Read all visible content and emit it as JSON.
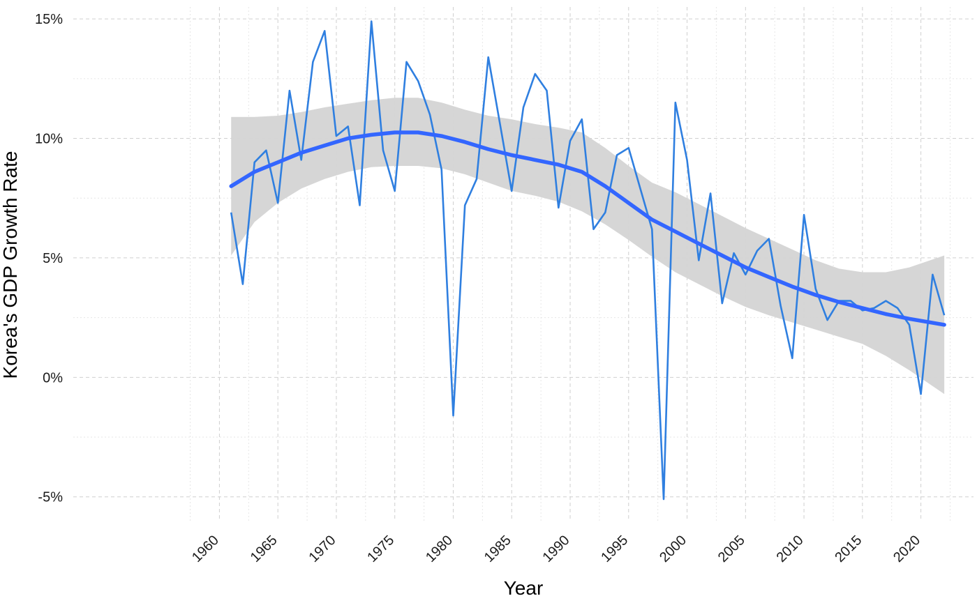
{
  "chart_data": {
    "type": "line",
    "title": "",
    "xlabel": "Year",
    "ylabel": "Korea's GDP Growth Rate",
    "xlim": [
      1947.5,
      2024.5
    ],
    "ylim": [
      -6,
      15.5
    ],
    "x_ticks": [
      1960,
      1965,
      1970,
      1975,
      1980,
      1985,
      1990,
      1995,
      2000,
      2005,
      2010,
      2015,
      2020
    ],
    "x_tick_labels": [
      "1960",
      "1965",
      "1970",
      "1975",
      "1980",
      "1985",
      "1990",
      "1995",
      "2000",
      "2005",
      "2010",
      "2015",
      "2020"
    ],
    "y_ticks": [
      -5,
      0,
      5,
      10,
      15
    ],
    "y_tick_labels": [
      "-5%",
      "0%",
      "5%",
      "10%",
      "15%"
    ],
    "grid": true,
    "legend": "none",
    "series": [
      {
        "kind": "line",
        "color": "#2f7fe0",
        "x": [
          1961,
          1962,
          1963,
          1964,
          1965,
          1966,
          1967,
          1968,
          1969,
          1970,
          1971,
          1972,
          1973,
          1974,
          1975,
          1976,
          1977,
          1978,
          1979,
          1980,
          1981,
          1982,
          1983,
          1984,
          1985,
          1986,
          1987,
          1988,
          1989,
          1990,
          1991,
          1992,
          1993,
          1994,
          1995,
          1996,
          1997,
          1998,
          1999,
          2000,
          2001,
          2002,
          2003,
          2004,
          2005,
          2006,
          2007,
          2008,
          2009,
          2010,
          2011,
          2012,
          2013,
          2014,
          2015,
          2016,
          2017,
          2018,
          2019,
          2020,
          2021,
          2022
        ],
        "values": [
          6.9,
          3.9,
          9.0,
          9.5,
          7.3,
          12.0,
          9.1,
          13.2,
          14.5,
          10.1,
          10.5,
          7.2,
          14.9,
          9.5,
          7.8,
          13.2,
          12.4,
          11.0,
          8.7,
          -1.6,
          7.2,
          8.3,
          13.4,
          10.6,
          7.8,
          11.3,
          12.7,
          12.0,
          7.1,
          9.9,
          10.8,
          6.2,
          6.9,
          9.3,
          9.6,
          7.9,
          6.2,
          -5.1,
          11.5,
          9.1,
          4.9,
          7.7,
          3.1,
          5.2,
          4.3,
          5.3,
          5.8,
          3.0,
          0.8,
          6.8,
          3.7,
          2.4,
          3.2,
          3.2,
          2.8,
          2.9,
          3.2,
          2.9,
          2.2,
          -0.7,
          4.3,
          2.6
        ]
      },
      {
        "kind": "smooth",
        "color": "#3366ff",
        "band_color": "#d4d4d4",
        "x": [
          1961,
          1963,
          1965,
          1967,
          1969,
          1971,
          1973,
          1975,
          1977,
          1979,
          1981,
          1983,
          1985,
          1987,
          1989,
          1991,
          1993,
          1995,
          1997,
          1999,
          2001,
          2003,
          2005,
          2007,
          2009,
          2011,
          2013,
          2015,
          2017,
          2019,
          2022
        ],
        "values": [
          8.0,
          8.6,
          9.0,
          9.4,
          9.7,
          10.0,
          10.15,
          10.25,
          10.25,
          10.1,
          9.85,
          9.55,
          9.3,
          9.1,
          8.9,
          8.6,
          8.0,
          7.3,
          6.6,
          6.1,
          5.6,
          5.1,
          4.6,
          4.2,
          3.8,
          3.45,
          3.15,
          2.9,
          2.65,
          2.45,
          2.2
        ],
        "lower": [
          5.1,
          6.5,
          7.3,
          7.9,
          8.3,
          8.6,
          8.8,
          8.85,
          8.85,
          8.75,
          8.5,
          8.15,
          7.8,
          7.6,
          7.35,
          6.95,
          6.4,
          5.75,
          5.05,
          4.4,
          3.9,
          3.4,
          2.95,
          2.6,
          2.3,
          2.0,
          1.7,
          1.4,
          0.9,
          0.3,
          -0.7
        ],
        "upper": [
          10.9,
          10.9,
          10.95,
          11.1,
          11.3,
          11.45,
          11.6,
          11.7,
          11.7,
          11.5,
          11.2,
          10.95,
          10.8,
          10.6,
          10.45,
          10.25,
          9.6,
          8.85,
          8.15,
          7.75,
          7.25,
          6.75,
          6.25,
          5.8,
          5.35,
          4.9,
          4.55,
          4.4,
          4.4,
          4.6,
          5.1
        ]
      }
    ]
  }
}
